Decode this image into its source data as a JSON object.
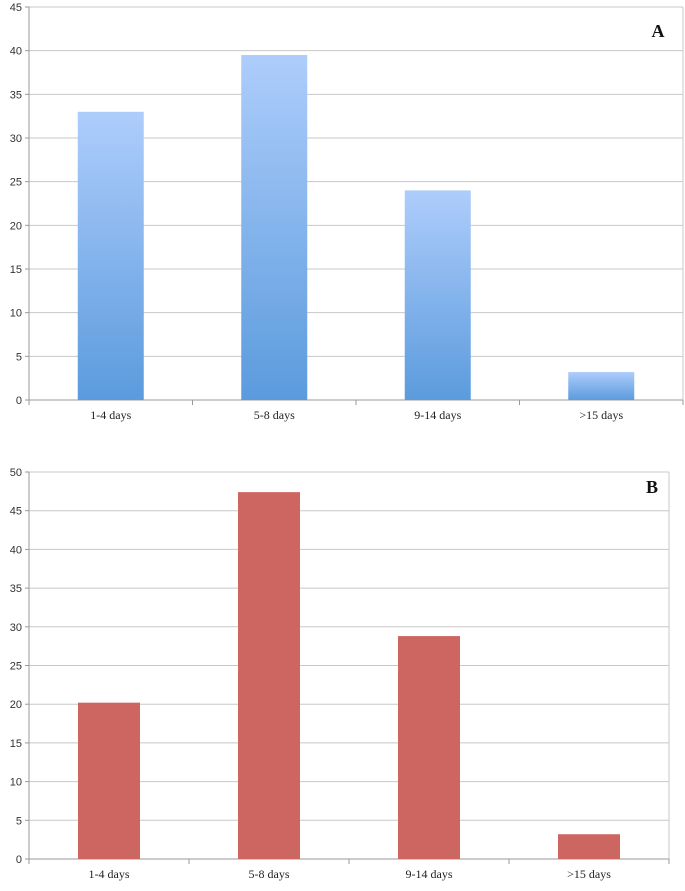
{
  "chart_data": [
    {
      "type": "bar",
      "panel_label": "A",
      "categories": [
        "1-4 days",
        "5-8 days",
        "9-14 days",
        ">15 days"
      ],
      "values": [
        33,
        39.5,
        24,
        3.2
      ],
      "ylim": [
        0,
        45
      ],
      "yticks": [
        0,
        5,
        10,
        15,
        20,
        25,
        30,
        35,
        40,
        45
      ],
      "grid": true,
      "bar_color_top": "#aecdfb",
      "bar_color_bottom": "#5b9bdd"
    },
    {
      "type": "bar",
      "panel_label": "B",
      "categories": [
        "1-4 days",
        "5-8 days",
        "9-14 days",
        ">15 days"
      ],
      "values": [
        20.2,
        47.4,
        28.8,
        3.2
      ],
      "ylim": [
        0,
        50
      ],
      "yticks": [
        0,
        5,
        10,
        15,
        20,
        25,
        30,
        35,
        40,
        45,
        50
      ],
      "grid": true,
      "bar_color": "#cd6660"
    }
  ]
}
